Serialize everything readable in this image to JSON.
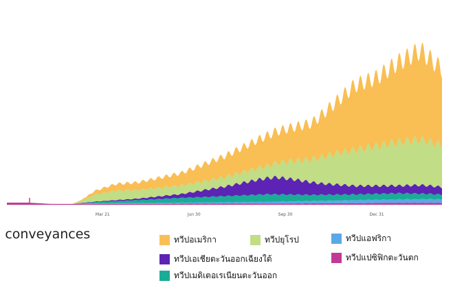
{
  "caption": "l conveyances",
  "colors": {
    "americas": "#f9be54",
    "europe": "#c1dd85",
    "south_east_asia": "#5c23b4",
    "eastern_mediterranean": "#1aac97",
    "africa": "#5ba8e8",
    "western_pacific": "#c23a96"
  },
  "legend": [
    {
      "name": "ทวีปอเมริกา",
      "color_key": "americas"
    },
    {
      "name": "ทวีปยุโรป",
      "color_key": "europe"
    },
    {
      "name": "ทวีปแอฟริกา",
      "color_key": "africa"
    },
    {
      "name": "ทวีปเอเชียตะวันออกเฉียงใต้",
      "color_key": "south_east_asia"
    },
    {
      "name": "ทวีปแปซิฟิกตะวันตก",
      "color_key": "western_pacific"
    },
    {
      "name": "ทวีปเมดิเตอเรเนียนตะวันออก",
      "color_key": "eastern_mediterranean"
    }
  ],
  "chart_data": {
    "type": "area",
    "stacked": true,
    "x_ticks": [
      "Mar 21",
      "Jun 30",
      "Sep 30",
      "Dec 31"
    ],
    "x_tick_positions": [
      0.22,
      0.43,
      0.64,
      0.85
    ],
    "ylim": [
      0,
      100
    ],
    "grid": false,
    "weekly_oscillation": true,
    "series": [
      {
        "name": "ทวีปแปซิฟิกตะวันตก",
        "color_key": "western_pacific",
        "points": [
          [
            0.0,
            1.0
          ],
          [
            0.05,
            1.0
          ],
          [
            0.1,
            0.4
          ],
          [
            0.2,
            0.4
          ],
          [
            0.4,
            0.5
          ],
          [
            0.6,
            0.6
          ],
          [
            0.8,
            0.8
          ],
          [
            0.9,
            1.0
          ],
          [
            1.0,
            1.0
          ]
        ]
      },
      {
        "name": "ทวีปแอฟริกา",
        "color_key": "africa",
        "points": [
          [
            0.0,
            0.0
          ],
          [
            0.15,
            0.0
          ],
          [
            0.2,
            0.3
          ],
          [
            0.4,
            0.6
          ],
          [
            0.6,
            0.9
          ],
          [
            0.8,
            1.6
          ],
          [
            0.9,
            1.8
          ],
          [
            0.97,
            2.0
          ],
          [
            1.0,
            1.8
          ]
        ]
      },
      {
        "name": "ทวีปเมดิเตอเรเนียนตะวันออก",
        "color_key": "eastern_mediterranean",
        "points": [
          [
            0.0,
            0.0
          ],
          [
            0.15,
            0.0
          ],
          [
            0.2,
            0.6
          ],
          [
            0.3,
            1.5
          ],
          [
            0.4,
            2.5
          ],
          [
            0.5,
            3.2
          ],
          [
            0.6,
            4.0
          ],
          [
            0.7,
            3.2
          ],
          [
            0.8,
            3.0
          ],
          [
            0.9,
            3.2
          ],
          [
            1.0,
            2.5
          ]
        ]
      },
      {
        "name": "ทวีปเอเชียตะวันออกเฉียงใต้",
        "color_key": "south_east_asia",
        "points": [
          [
            0.0,
            0.0
          ],
          [
            0.15,
            0.0
          ],
          [
            0.2,
            0.3
          ],
          [
            0.3,
            0.8
          ],
          [
            0.4,
            2.0
          ],
          [
            0.5,
            5.0
          ],
          [
            0.58,
            8.0
          ],
          [
            0.62,
            9.0
          ],
          [
            0.66,
            8.0
          ],
          [
            0.72,
            6.0
          ],
          [
            0.8,
            4.5
          ],
          [
            0.9,
            4.0
          ],
          [
            0.95,
            4.5
          ],
          [
            1.0,
            4.0
          ]
        ]
      },
      {
        "name": "ทวีปยุโรป",
        "color_key": "europe",
        "points": [
          [
            0.0,
            0.0
          ],
          [
            0.15,
            0.0
          ],
          [
            0.17,
            0.8
          ],
          [
            0.2,
            3.5
          ],
          [
            0.25,
            5.0
          ],
          [
            0.3,
            4.5
          ],
          [
            0.4,
            4.5
          ],
          [
            0.5,
            5.0
          ],
          [
            0.6,
            6.5
          ],
          [
            0.7,
            12.0
          ],
          [
            0.75,
            16.0
          ],
          [
            0.8,
            19.0
          ],
          [
            0.85,
            21.0
          ],
          [
            0.9,
            23.0
          ],
          [
            0.95,
            24.0
          ],
          [
            1.0,
            22.0
          ]
        ]
      },
      {
        "name": "ทวีปอเมริกา",
        "color_key": "americas",
        "points": [
          [
            0.0,
            0.0
          ],
          [
            0.15,
            0.0
          ],
          [
            0.18,
            0.8
          ],
          [
            0.2,
            2.0
          ],
          [
            0.25,
            3.5
          ],
          [
            0.3,
            4.0
          ],
          [
            0.4,
            6.5
          ],
          [
            0.5,
            11.0
          ],
          [
            0.6,
            16.0
          ],
          [
            0.7,
            19.0
          ],
          [
            0.75,
            26.0
          ],
          [
            0.8,
            34.0
          ],
          [
            0.85,
            36.0
          ],
          [
            0.9,
            42.0
          ],
          [
            0.95,
            47.0
          ],
          [
            1.0,
            40.0
          ]
        ]
      }
    ]
  }
}
